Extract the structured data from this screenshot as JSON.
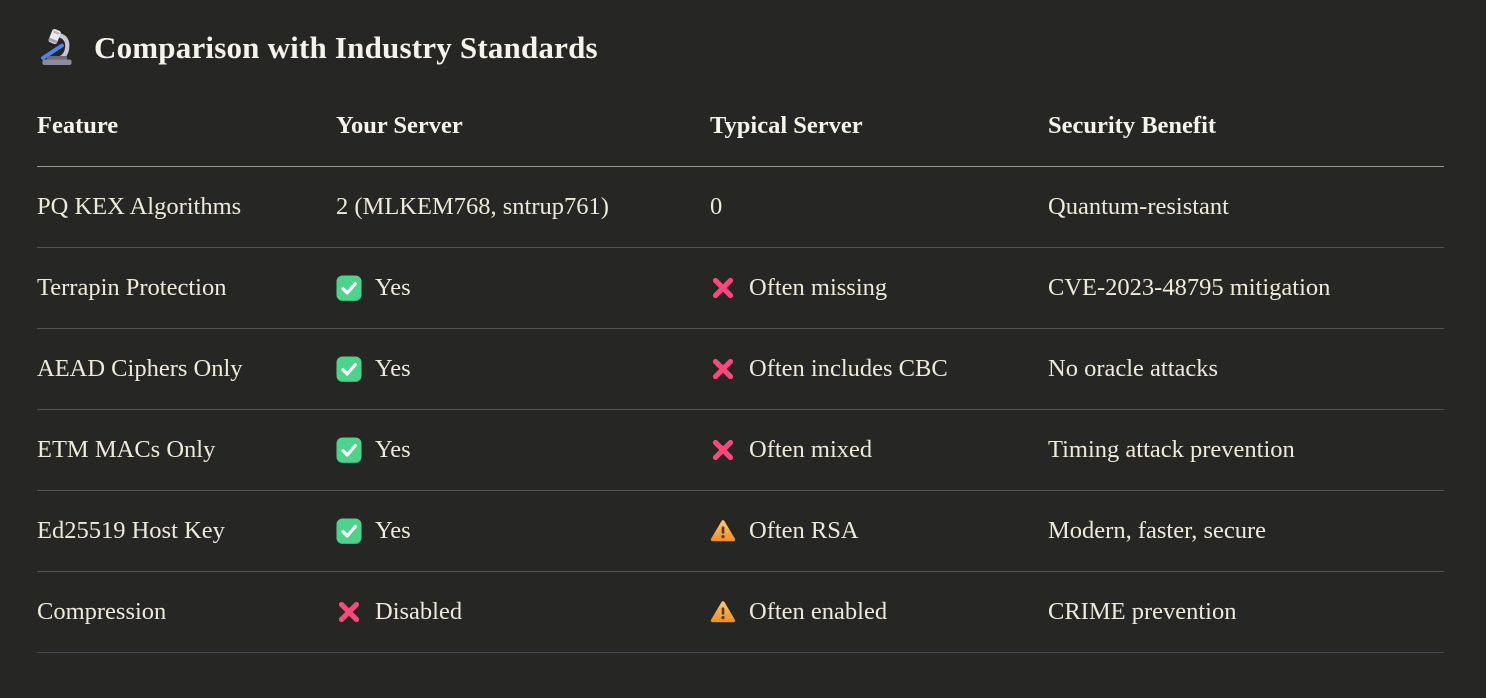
{
  "page": {
    "title": "Comparison with Industry Standards",
    "title_icon": "microscope-icon"
  },
  "colors": {
    "background": "#262624",
    "text": "#eeeada",
    "title_text": "#f5f3ea",
    "header_rule": "#96968f",
    "row_rule": "#55554f",
    "bottom_rule": "#46464a",
    "check_green": "#4ed38c",
    "cross_pink": "#f8487c",
    "warning_orange": "#f5a843"
  },
  "table": {
    "headers": [
      "Feature",
      "Your Server",
      "Typical Server",
      "Security Benefit"
    ],
    "rows": [
      {
        "cells": [
          {
            "text": "PQ KEX Algorithms"
          },
          {
            "icon": null,
            "text": "2 (MLKEM768, sntrup761)"
          },
          {
            "icon": null,
            "text": "0"
          },
          {
            "text": "Quantum-resistant"
          }
        ]
      },
      {
        "cells": [
          {
            "text": "Terrapin Protection"
          },
          {
            "icon": "check-icon",
            "text": "Yes"
          },
          {
            "icon": "cross-icon",
            "text": "Often missing"
          },
          {
            "text": "CVE-2023-48795 mitigation"
          }
        ]
      },
      {
        "cells": [
          {
            "text": "AEAD Ciphers Only"
          },
          {
            "icon": "check-icon",
            "text": "Yes"
          },
          {
            "icon": "cross-icon",
            "text": "Often includes CBC"
          },
          {
            "text": "No oracle attacks"
          }
        ]
      },
      {
        "cells": [
          {
            "text": "ETM MACs Only"
          },
          {
            "icon": "check-icon",
            "text": "Yes"
          },
          {
            "icon": "cross-icon",
            "text": "Often mixed"
          },
          {
            "text": "Timing attack prevention"
          }
        ]
      },
      {
        "cells": [
          {
            "text": "Ed25519 Host Key"
          },
          {
            "icon": "check-icon",
            "text": "Yes"
          },
          {
            "icon": "warning-icon",
            "text": "Often RSA"
          },
          {
            "text": "Modern, faster, secure"
          }
        ]
      },
      {
        "cells": [
          {
            "text": "Compression"
          },
          {
            "icon": "cross-icon",
            "text": "Disabled"
          },
          {
            "icon": "warning-icon",
            "text": "Often enabled"
          },
          {
            "text": "CRIME prevention"
          }
        ]
      }
    ]
  }
}
